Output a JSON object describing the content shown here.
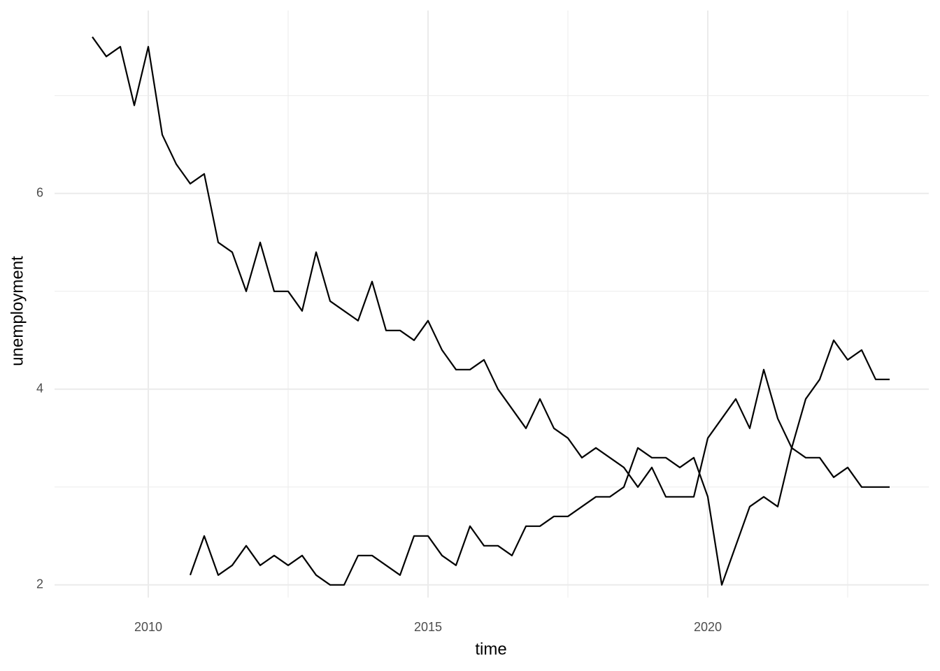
{
  "chart_data": {
    "type": "line",
    "x_label": "time",
    "y_label": "unemployment",
    "x": [
      2009,
      2009.25,
      2009.5,
      2009.75,
      2010,
      2010.25,
      2010.5,
      2010.75,
      2011,
      2011.25,
      2011.5,
      2011.75,
      2012,
      2012.25,
      2012.5,
      2012.75,
      2013,
      2013.25,
      2013.5,
      2013.75,
      2014,
      2014.25,
      2014.5,
      2014.75,
      2015,
      2015.25,
      2015.5,
      2015.75,
      2016,
      2016.25,
      2016.5,
      2016.75,
      2017,
      2017.25,
      2017.5,
      2017.75,
      2018,
      2018.25,
      2018.5,
      2018.75,
      2019,
      2019.25,
      2019.5,
      2019.75,
      2020,
      2020.25,
      2020.5,
      2020.75,
      2021,
      2021.25,
      2021.5,
      2021.75,
      2022,
      2022.25,
      2022.5,
      2022.75,
      2023,
      2023.25
    ],
    "series": [
      {
        "color": "#000000",
        "values": [
          7.6,
          7.4,
          7.5,
          6.9,
          7.5,
          6.6,
          6.3,
          6.1,
          6.2,
          5.5,
          5.4,
          5.0,
          5.5,
          5.0,
          5.0,
          4.8,
          5.4,
          4.9,
          4.8,
          4.7,
          5.1,
          4.6,
          4.6,
          4.5,
          4.7,
          4.4,
          4.2,
          4.2,
          4.3,
          4.0,
          3.8,
          3.6,
          3.9,
          3.6,
          3.5,
          3.3,
          3.4,
          3.3,
          3.2,
          3.0,
          3.2,
          2.9,
          2.9,
          2.9,
          3.5,
          3.7,
          3.9,
          3.6,
          4.2,
          3.7,
          3.4,
          3.3,
          3.3,
          3.1,
          3.2,
          3.0,
          3.0,
          3.0
        ]
      },
      {
        "color": "#000000",
        "values": [
          null,
          null,
          null,
          null,
          null,
          null,
          null,
          2.1,
          2.5,
          2.1,
          2.2,
          2.4,
          2.2,
          2.3,
          2.2,
          2.3,
          2.1,
          2.0,
          2.0,
          2.3,
          2.3,
          2.2,
          2.1,
          2.5,
          2.5,
          2.3,
          2.2,
          2.6,
          2.4,
          2.4,
          2.3,
          2.6,
          2.6,
          2.7,
          2.7,
          2.8,
          2.9,
          2.9,
          3.0,
          3.4,
          3.3,
          3.3,
          3.2,
          3.3,
          2.9,
          2.0,
          2.4,
          2.8,
          2.9,
          2.8,
          3.4,
          3.9,
          4.1,
          4.5,
          4.3,
          4.4,
          4.1,
          4.1
        ]
      }
    ],
    "xlim": [
      2008.325,
      2023.95
    ],
    "ylim": [
      1.87,
      7.87
    ],
    "xticks": [
      2010,
      2015,
      2020
    ],
    "yticks": [
      2,
      4,
      6
    ],
    "minor_xticks": [
      2012.5,
      2017.5,
      2022.5
    ],
    "minor_yticks": [
      3,
      5,
      7
    ],
    "grid": true
  }
}
